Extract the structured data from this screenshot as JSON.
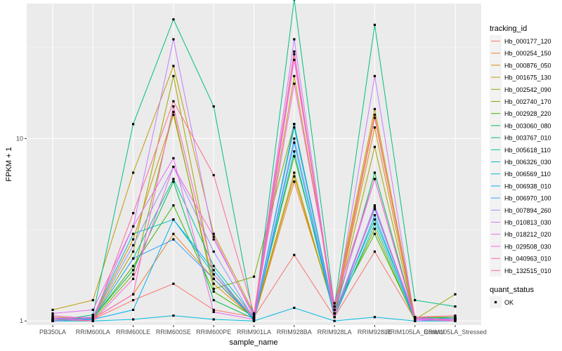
{
  "chart_data": {
    "type": "line",
    "xlabel": "sample_name",
    "ylabel": "FPKM + 1",
    "y_scale": "log10",
    "ylim": [
      0.95,
      55
    ],
    "y_ticks": [
      {
        "value": 1,
        "label": "1"
      },
      {
        "value": 10,
        "label": "10"
      }
    ],
    "grid": true,
    "legend_position": "right",
    "categories": [
      "PB350LA",
      "RRIM600LA",
      "RRIM600LE",
      "RRIM600SE",
      "RRIM600PE",
      "RRIM901LA",
      "RRIM928BA",
      "RRIM928LA",
      "RRIM928LE",
      "RRIM105LA_Control",
      "RRIM105LA_Stressed"
    ],
    "series_legend_title": "tracking_id",
    "series": [
      {
        "name": "Hb_000177_120",
        "color": "#F8766D",
        "values": [
          1.05,
          1.02,
          1.3,
          1.6,
          1.15,
          1.05,
          2.3,
          1.05,
          2.4,
          1.02,
          1.02
        ]
      },
      {
        "name": "Hb_000254_150",
        "color": "#EA8331",
        "values": [
          1.02,
          1.03,
          1.4,
          3.0,
          1.7,
          1.02,
          5.8,
          1.15,
          13.5,
          1.02,
          1.02
        ]
      },
      {
        "name": "Hb_000876_050",
        "color": "#D89000",
        "values": [
          1.0,
          1.04,
          2.8,
          13.5,
          1.6,
          1.03,
          6.2,
          1.1,
          11.5,
          1.02,
          1.03
        ]
      },
      {
        "name": "Hb_001675_130",
        "color": "#C09B00",
        "values": [
          1.15,
          1.3,
          6.5,
          25.0,
          3.0,
          1.1,
          22.0,
          1.2,
          14.5,
          1.05,
          1.05
        ]
      },
      {
        "name": "Hb_002542_090",
        "color": "#A3A500",
        "values": [
          1.05,
          1.03,
          2.4,
          22.0,
          1.7,
          1.05,
          6.5,
          1.1,
          9.0,
          1.02,
          1.4
        ]
      },
      {
        "name": "Hb_002740_170",
        "color": "#7CAE00",
        "values": [
          1.0,
          1.02,
          1.8,
          14.0,
          1.5,
          1.75,
          12.0,
          1.1,
          3.2,
          1.0,
          1.02
        ]
      },
      {
        "name": "Hb_002928_220",
        "color": "#39B600",
        "values": [
          1.0,
          1.03,
          2.0,
          4.3,
          1.45,
          1.05,
          8.0,
          1.15,
          3.0,
          1.02,
          1.03
        ]
      },
      {
        "name": "Hb_003060_080",
        "color": "#00BB4E",
        "values": [
          1.03,
          1.04,
          1.9,
          5.8,
          1.3,
          1.03,
          12.0,
          1.1,
          6.5,
          1.03,
          1.05
        ]
      },
      {
        "name": "Hb_003767_010",
        "color": "#00BF7D",
        "values": [
          1.0,
          1.08,
          12.0,
          45.0,
          15.0,
          1.02,
          58.0,
          1.2,
          42.0,
          1.3,
          1.2
        ]
      },
      {
        "name": "Hb_005618_110",
        "color": "#00C1A3",
        "values": [
          1.0,
          1.03,
          2.2,
          6.0,
          2.0,
          1.05,
          11.5,
          1.1,
          3.6,
          1.05,
          1.03
        ]
      },
      {
        "name": "Hb_006326_030",
        "color": "#00BFC4",
        "values": [
          1.02,
          1.05,
          3.0,
          3.6,
          1.8,
          1.02,
          8.5,
          1.05,
          3.4,
          1.02,
          1.02
        ]
      },
      {
        "name": "Hb_006569_110",
        "color": "#00BAE0",
        "values": [
          1.0,
          1.0,
          1.02,
          1.07,
          1.02,
          1.0,
          1.18,
          1.0,
          1.05,
          1.0,
          1.0
        ]
      },
      {
        "name": "Hb_006938_010",
        "color": "#00B0F6",
        "values": [
          1.0,
          1.02,
          1.15,
          3.6,
          1.9,
          1.0,
          9.5,
          1.05,
          3.8,
          1.02,
          1.02
        ]
      },
      {
        "name": "Hb_006970_100",
        "color": "#35A2FF",
        "values": [
          1.02,
          1.03,
          2.2,
          2.8,
          1.7,
          1.03,
          12.0,
          1.1,
          4.1,
          1.03,
          1.02
        ]
      },
      {
        "name": "Hb_007894_260",
        "color": "#9590FF",
        "values": [
          1.0,
          1.04,
          2.6,
          7.0,
          2.4,
          1.02,
          10.0,
          1.1,
          4.3,
          1.02,
          1.03
        ]
      },
      {
        "name": "Hb_010813_030",
        "color": "#C77CFF",
        "values": [
          1.03,
          1.05,
          3.3,
          35.0,
          2.8,
          1.08,
          35.0,
          1.1,
          22.0,
          1.0,
          1.03
        ]
      },
      {
        "name": "Hb_018212_020",
        "color": "#E76BF3",
        "values": [
          1.1,
          1.15,
          3.3,
          7.8,
          1.12,
          1.02,
          27.0,
          1.15,
          6.0,
          1.03,
          1.02
        ]
      },
      {
        "name": "Hb_029508_030",
        "color": "#FA62DB",
        "values": [
          1.05,
          1.0,
          1.7,
          7.0,
          2.9,
          1.05,
          20.0,
          1.25,
          6.0,
          1.02,
          1.0
        ]
      },
      {
        "name": "Hb_040963_010",
        "color": "#FF62BC",
        "values": [
          1.07,
          1.03,
          1.4,
          15.0,
          1.8,
          1.05,
          29.0,
          1.05,
          4.2,
          1.05,
          1.0
        ]
      },
      {
        "name": "Hb_132515_010",
        "color": "#FF6C91",
        "values": [
          1.02,
          1.0,
          3.9,
          16.0,
          6.3,
          1.1,
          30.0,
          1.1,
          13.0,
          1.05,
          1.07
        ]
      }
    ],
    "shape_legend_title": "quant_status",
    "shape_legend_items": [
      "OK"
    ]
  }
}
